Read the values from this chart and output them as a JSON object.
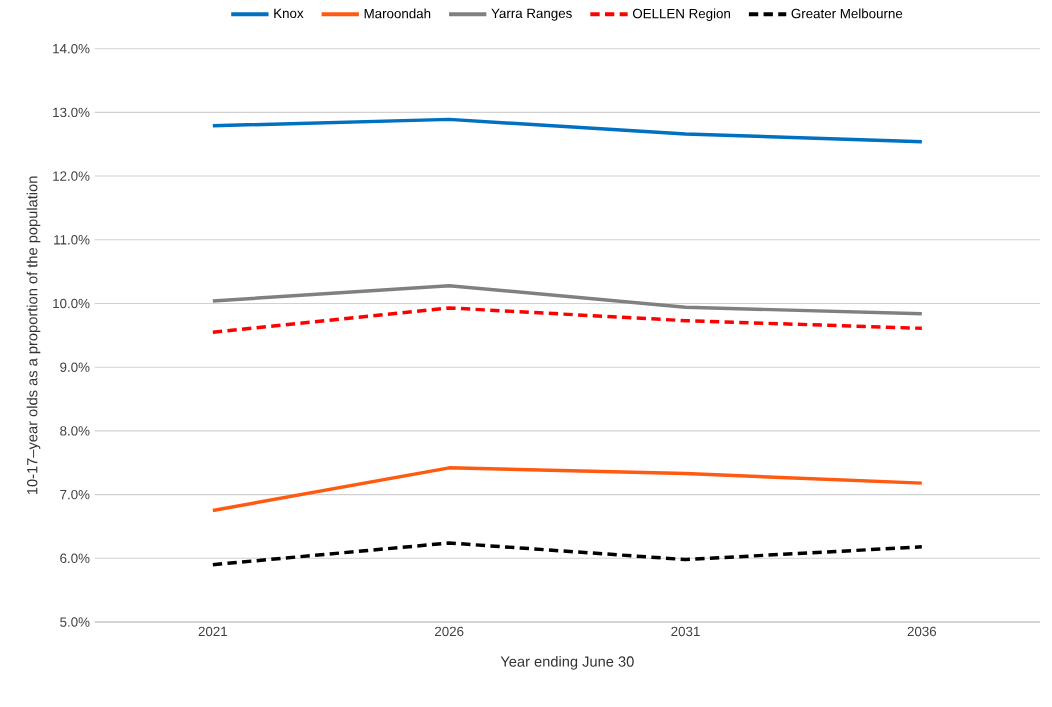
{
  "chart_data": {
    "type": "line",
    "xlabel": "Year ending June 30",
    "ylabel": "10-17–year olds as a proportion of the population",
    "categories": [
      "2021",
      "2026",
      "2031",
      "2036"
    ],
    "series": [
      {
        "name": "Knox",
        "color": "#0070c0",
        "line_style": "solid",
        "values": [
          12.79,
          12.89,
          12.66,
          12.54
        ]
      },
      {
        "name": "Maroondah",
        "color": "#ff5a0f",
        "line_style": "solid",
        "values": [
          6.75,
          7.42,
          7.33,
          7.18
        ]
      },
      {
        "name": "Yarra Ranges",
        "color": "#808080",
        "line_style": "solid",
        "values": [
          10.04,
          10.28,
          9.94,
          9.84
        ]
      },
      {
        "name": "OELLEN Region",
        "color": "#ff0000",
        "line_style": "dashed",
        "values": [
          9.55,
          9.93,
          9.73,
          9.61
        ]
      },
      {
        "name": "Greater Melbourne",
        "color": "#000000",
        "line_style": "dashed",
        "values": [
          5.9,
          6.24,
          5.98,
          6.18
        ]
      }
    ],
    "ylim": [
      5,
      14
    ],
    "yticks": [
      {
        "value": 5,
        "label": "5.0%"
      },
      {
        "value": 6,
        "label": "6.0%"
      },
      {
        "value": 7,
        "label": "7.0%"
      },
      {
        "value": 8,
        "label": "8.0%"
      },
      {
        "value": 9,
        "label": "9.0%"
      },
      {
        "value": 10,
        "label": "10.0%"
      },
      {
        "value": 11,
        "label": "11.0%"
      },
      {
        "value": 12,
        "label": "12.0%"
      },
      {
        "value": 13,
        "label": "13.0%"
      },
      {
        "value": 14,
        "label": "14.0%"
      }
    ],
    "grid": "y",
    "legend": "top",
    "marker": "none"
  }
}
